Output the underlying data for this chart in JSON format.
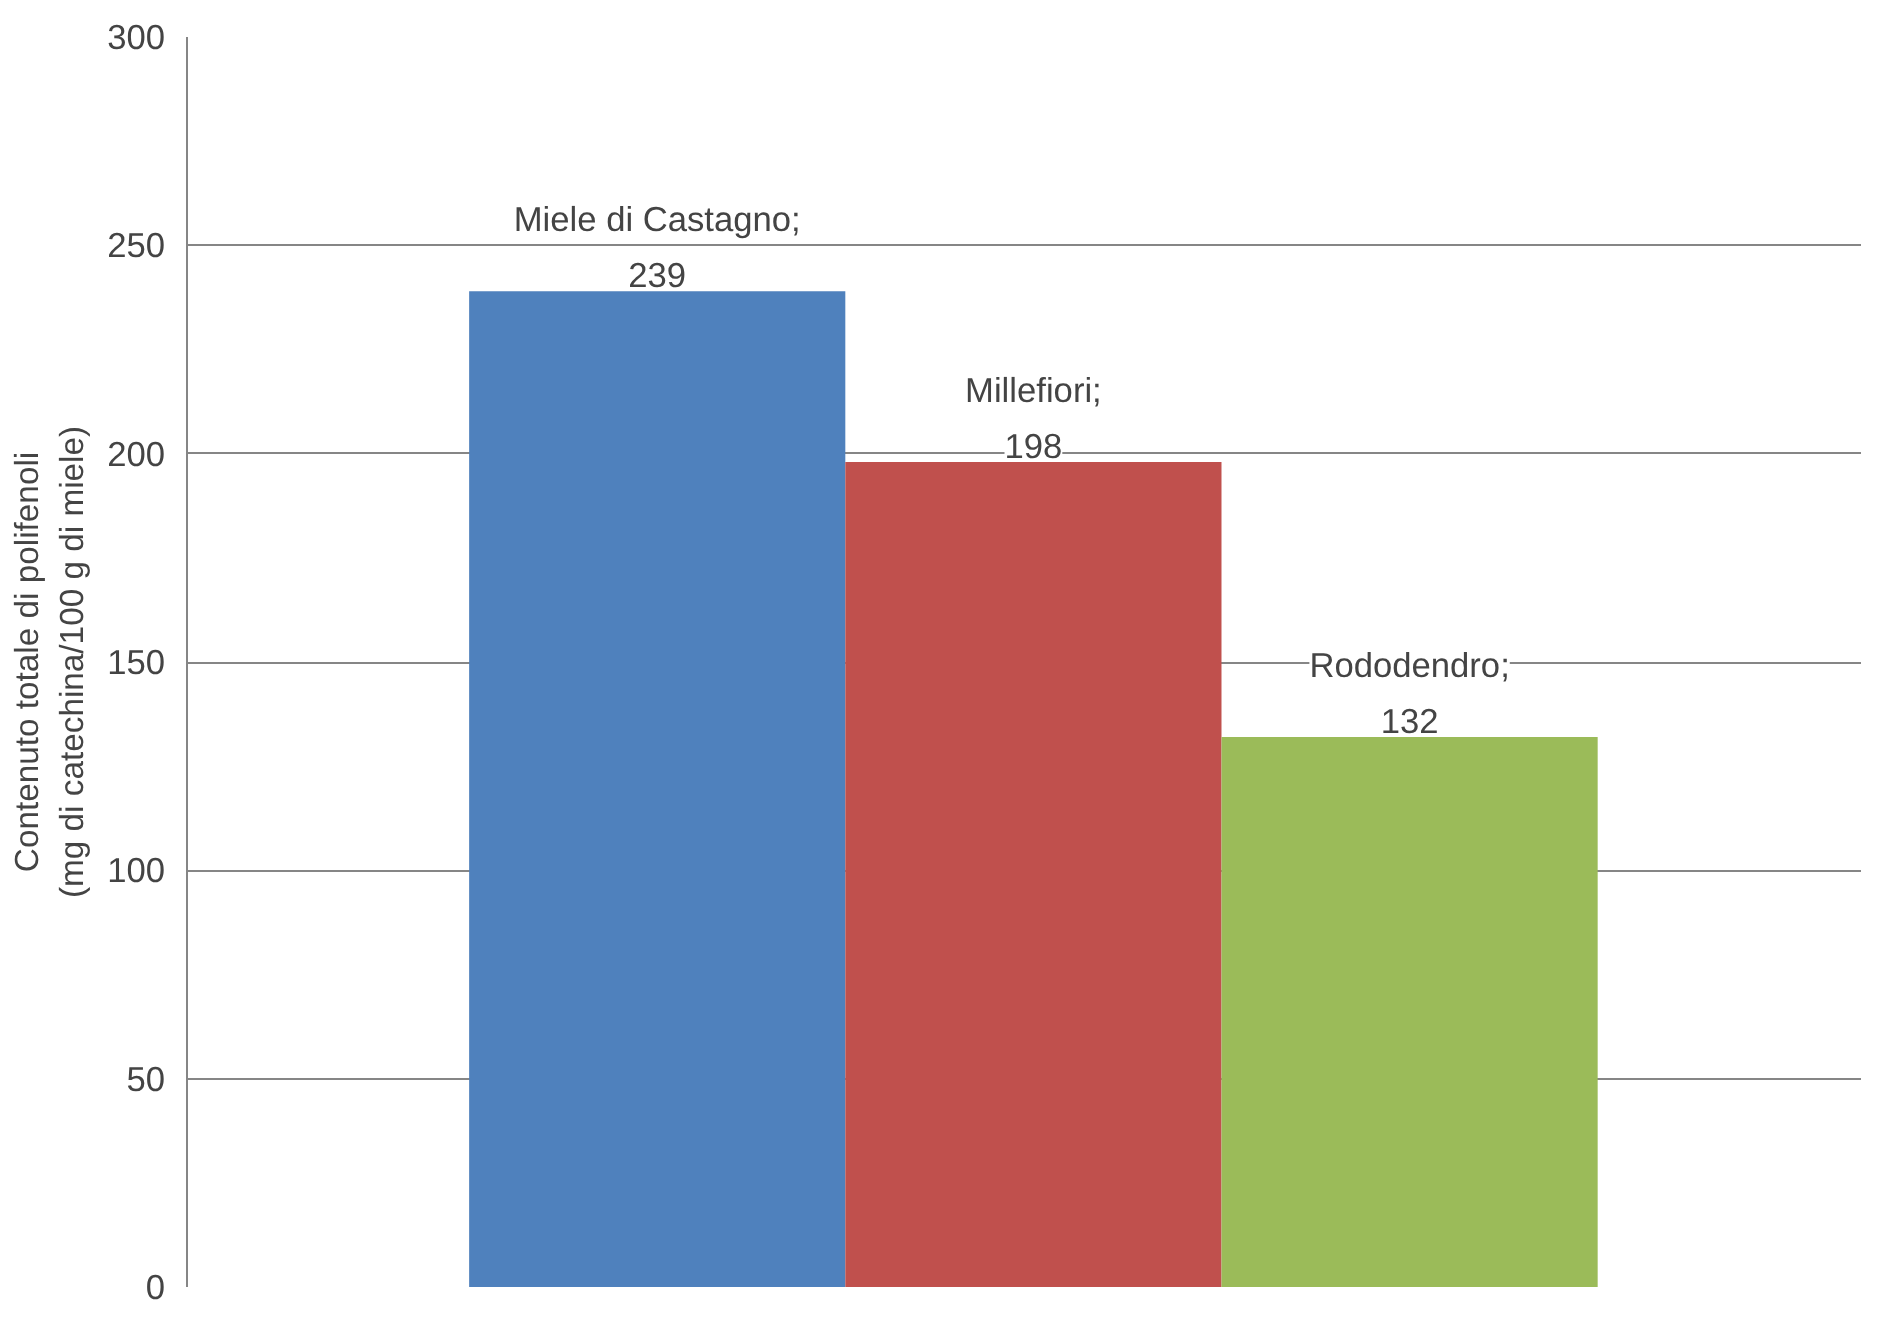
{
  "chart_data": {
    "type": "bar",
    "ylabel": "Contenuto totale di polifenoli\n(mg di catechina/100 g di miele)",
    "categories": [
      null,
      null,
      null
    ],
    "values": [
      239,
      198,
      132
    ],
    "colors": [
      "#4f81bd",
      "#c0504d",
      "#9bbb59"
    ],
    "value_labels": [
      "Miele di Castagno;\n239",
      "Millefiori;\n198",
      "Rododendro;\n132"
    ],
    "ylim": [
      0,
      300
    ],
    "yticks": [
      0,
      50,
      100,
      150,
      200,
      250,
      300
    ],
    "grid": "y",
    "tick_labels": "y"
  }
}
